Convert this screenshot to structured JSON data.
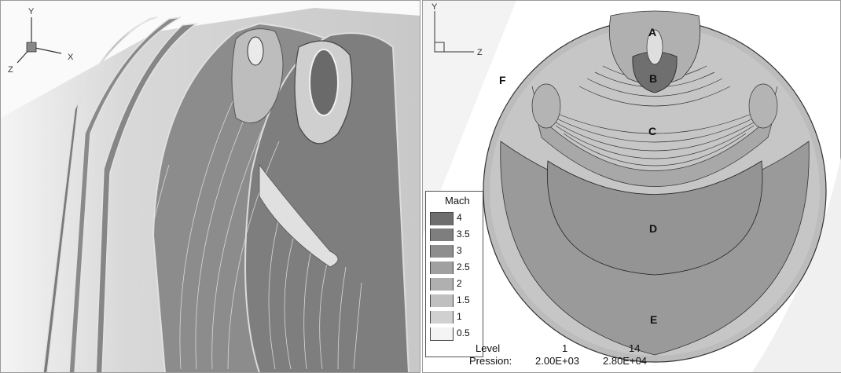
{
  "left_view": {
    "axes": {
      "y": "Y",
      "x": "X",
      "z": "Z"
    }
  },
  "right_view": {
    "axes": {
      "y": "Y",
      "z": "Z"
    },
    "zones": [
      {
        "id": "A",
        "label": "A"
      },
      {
        "id": "B",
        "label": "B"
      },
      {
        "id": "C",
        "label": "C"
      },
      {
        "id": "D",
        "label": "D"
      },
      {
        "id": "E",
        "label": "E"
      },
      {
        "id": "F",
        "label": "F"
      }
    ]
  },
  "legend": {
    "title": "Mach",
    "levels": [
      {
        "value": "4",
        "color": "#6e6e6e"
      },
      {
        "value": "3.5",
        "color": "#7e7e7e"
      },
      {
        "value": "3",
        "color": "#8e8e8e"
      },
      {
        "value": "2.5",
        "color": "#a0a0a0"
      },
      {
        "value": "2",
        "color": "#b0b0b0"
      },
      {
        "value": "1.5",
        "color": "#c0c0c0"
      },
      {
        "value": "1",
        "color": "#d0d0d0"
      },
      {
        "value": "0.5",
        "color": "#f4f4f4"
      }
    ]
  },
  "pressure_table": {
    "header_label": "Level",
    "header_min": "1",
    "header_max": "14",
    "row_label": "Pression:",
    "min_value": "2.00E+03",
    "max_value": "2.80E+04"
  }
}
